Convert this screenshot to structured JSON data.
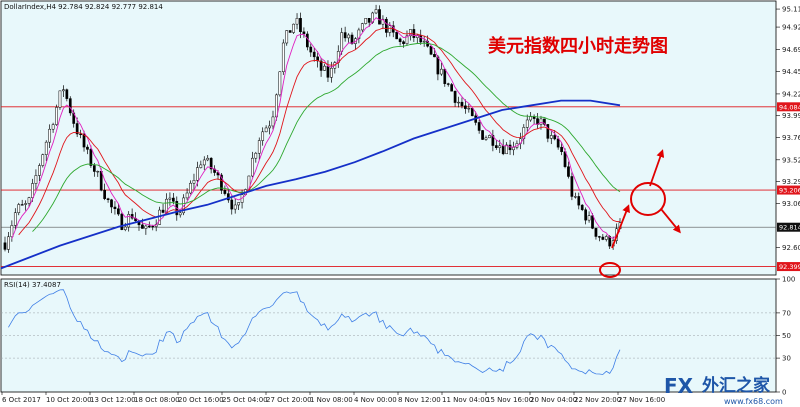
{
  "chart_header": "DollarIndex,H4  92.784 92.824 92.777 92.814",
  "title": "美元指数四小时走势图",
  "rsi_label": "RSI(14) 37.4087",
  "watermark": {
    "fx": "FX",
    "cn": "外汇之家",
    "url": "www.fx68.com"
  },
  "price_axis_ticks": [
    "95.115",
    "94.925",
    "94.690",
    "94.455",
    "94.220",
    "93.990",
    "93.760",
    "93.525",
    "93.295",
    "93.065",
    "92.600"
  ],
  "price_tags": [
    {
      "label": "94.084",
      "color": "#e0151b"
    },
    {
      "label": "93.206",
      "color": "#e0151b"
    },
    {
      "label": "92.814",
      "color": "#111111"
    },
    {
      "label": "92.399",
      "color": "#e0151b"
    }
  ],
  "rsi_axis_ticks": [
    "100",
    "70",
    "50",
    "30",
    "0"
  ],
  "time_axis_ticks": [
    "6 Oct 2017",
    "10 Oct 20:00",
    "13 Oct 12:00",
    "18 Oct 08:00",
    "20 Oct 16:00",
    "25 Oct 04:00",
    "27 Oct 20:00",
    "1 Nov 08:00",
    "4 Nov 00:00",
    "8 Nov 12:00",
    "11 Nov 04:00",
    "15 Nov 16:00",
    "20 Nov 04:00",
    "22 Nov 20:00",
    "27 Nov 16:00"
  ],
  "colors": {
    "background": "#e8f8fb",
    "bull": "#ffffff",
    "bear": "#000000",
    "ma_long": "#1530c8",
    "ma_mid": "#2ea82e",
    "ma_fast": "#e0151b",
    "ma_magenta": "#e020c0",
    "rsi": "#3f7fe6",
    "annotation": "#e00000"
  },
  "chart_data": {
    "type": "candlestick",
    "ylim": [
      92.31,
      95.2
    ],
    "levels": [
      94.084,
      93.206,
      92.814,
      92.399
    ],
    "close_path": [
      92.65,
      93.0,
      93.05,
      93.5,
      93.9,
      94.3,
      93.9,
      93.6,
      93.35,
      93.05,
      92.85,
      92.95,
      92.75,
      92.9,
      93.1,
      92.95,
      93.25,
      93.55,
      93.4,
      93.2,
      92.95,
      93.4,
      93.8,
      93.95,
      94.75,
      95.0,
      94.75,
      94.5,
      94.4,
      94.85,
      94.75,
      94.95,
      95.05,
      94.9,
      94.75,
      94.85,
      94.75,
      94.55,
      94.35,
      94.15,
      94.0,
      93.8,
      93.75,
      93.65,
      93.7,
      93.9,
      93.95,
      93.75,
      93.6,
      93.1,
      92.95,
      92.75,
      92.65,
      92.81
    ],
    "ma_long_path": [
      92.38,
      92.5,
      92.62,
      92.72,
      92.82,
      92.9,
      92.98,
      93.05,
      93.15,
      93.25,
      93.32,
      93.4,
      93.5,
      93.62,
      93.75,
      93.85,
      93.95,
      94.05,
      94.1,
      94.15,
      94.15,
      94.1
    ],
    "rsi_ylim": [
      0,
      100
    ],
    "rsi_levels": [
      70,
      50,
      30
    ],
    "rsi_last": 37.4087
  }
}
